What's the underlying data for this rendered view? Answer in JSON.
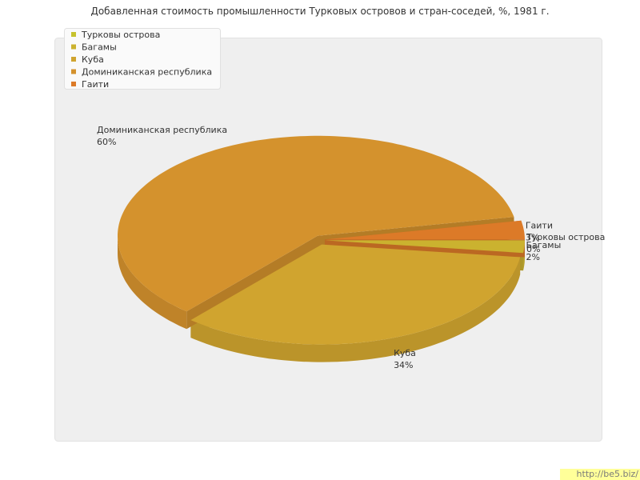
{
  "chart_data": {
    "type": "pie3d",
    "title": "Добавленная стоимость промышленности Турковых островов и стран-соседей, %, 1981 г.",
    "categories": [
      "Турковы острова",
      "Багамы",
      "Куба",
      "Доминиканская республика",
      "Гаити"
    ],
    "values": [
      0,
      2,
      34,
      60,
      3
    ],
    "value_labels": [
      "0%",
      "2%",
      "34%",
      "60%",
      "3%"
    ],
    "colors": [
      "#c6c22e",
      "#cbb22f",
      "#d0a42f",
      "#d4922d",
      "#dc7a28"
    ],
    "legend": "top-left",
    "watermark": "http://be5.biz/"
  }
}
